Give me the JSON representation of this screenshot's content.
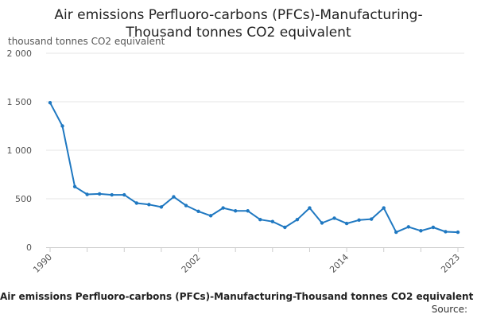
{
  "title_lines": [
    "Air emissions Perfluoro-carbons (PFCs)-Manufacturing-",
    "Thousand tonnes CO2 equivalent"
  ],
  "units_label": "thousand tonnes CO2 equivalent",
  "legend_text": "Air emissions Perfluoro-carbons (PFCs)-Manufacturing-Thousand tonnes CO2 equivalent",
  "source_label": "Source:",
  "colors": {
    "line": "#1f78c1",
    "grid": "#e6e6e6",
    "axis": "#cccccc",
    "tick_text": "#555555"
  },
  "chart_data": {
    "type": "line",
    "title": "Air emissions Perfluoro-carbons (PFCs)-Manufacturing-Thousand tonnes CO2 equivalent",
    "ylabel": "thousand tonnes CO2 equivalent",
    "xlim": [
      1990,
      2023
    ],
    "ylim": [
      0,
      2000
    ],
    "y_ticks": [
      0,
      500,
      1000,
      1500,
      2000
    ],
    "y_tick_labels": [
      "0",
      "500",
      "1 000",
      "1 500",
      "2 000"
    ],
    "x_ticks": [
      1990,
      2002,
      2014,
      2023
    ],
    "x_tick_labels": [
      "1990",
      "2002",
      "2014",
      "2023"
    ],
    "x_minor_ticks": [
      1990,
      1993,
      1996,
      1999,
      2002,
      2005,
      2008,
      2011,
      2014,
      2017,
      2020,
      2023
    ],
    "grid": true,
    "legend_position": "bottom",
    "series": [
      {
        "name": "Air emissions Perfluoro-carbons (PFCs)-Manufacturing-Thousand tonnes CO2 equivalent",
        "x": [
          1990,
          1991,
          1992,
          1993,
          1994,
          1995,
          1996,
          1997,
          1998,
          1999,
          2000,
          2001,
          2002,
          2003,
          2004,
          2005,
          2006,
          2007,
          2008,
          2009,
          2010,
          2011,
          2012,
          2013,
          2014,
          2015,
          2016,
          2017,
          2018,
          2019,
          2020,
          2021,
          2022,
          2023
        ],
        "y": [
          1490,
          1250,
          625,
          545,
          550,
          540,
          540,
          455,
          440,
          415,
          520,
          430,
          370,
          325,
          405,
          375,
          375,
          285,
          265,
          205,
          285,
          405,
          250,
          300,
          245,
          280,
          290,
          405,
          155,
          210,
          170,
          205,
          160,
          155
        ]
      }
    ]
  }
}
